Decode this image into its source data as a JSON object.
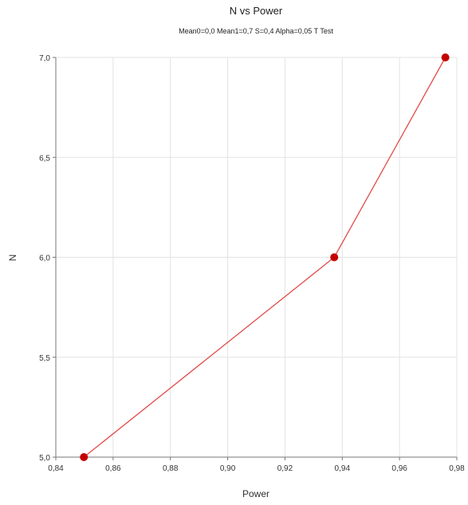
{
  "chart_data": {
    "type": "line",
    "title": "N vs Power",
    "subtitle": "Mean0=0,0 Mean1=0,7 S=0,4 Alpha=0,05 T Test",
    "xlabel": "Power",
    "ylabel": "N",
    "xlim": [
      0.84,
      0.98
    ],
    "ylim": [
      5.0,
      7.0
    ],
    "x_ticks": [
      "0,84",
      "0,86",
      "0,88",
      "0,90",
      "0,92",
      "0,94",
      "0,96",
      "0,98"
    ],
    "y_ticks": [
      "5,0",
      "5,5",
      "6,0",
      "6,5",
      "7,0"
    ],
    "grid": true,
    "legend": false,
    "series": [
      {
        "x": [
          0.8498,
          0.9372,
          0.976
        ],
        "y": [
          5.0,
          6.0,
          7.0
        ]
      }
    ],
    "colors": {
      "line": "#e24b4b",
      "marker": "#c40000",
      "grid": "#e3e3e3",
      "axis": "#777777"
    }
  }
}
